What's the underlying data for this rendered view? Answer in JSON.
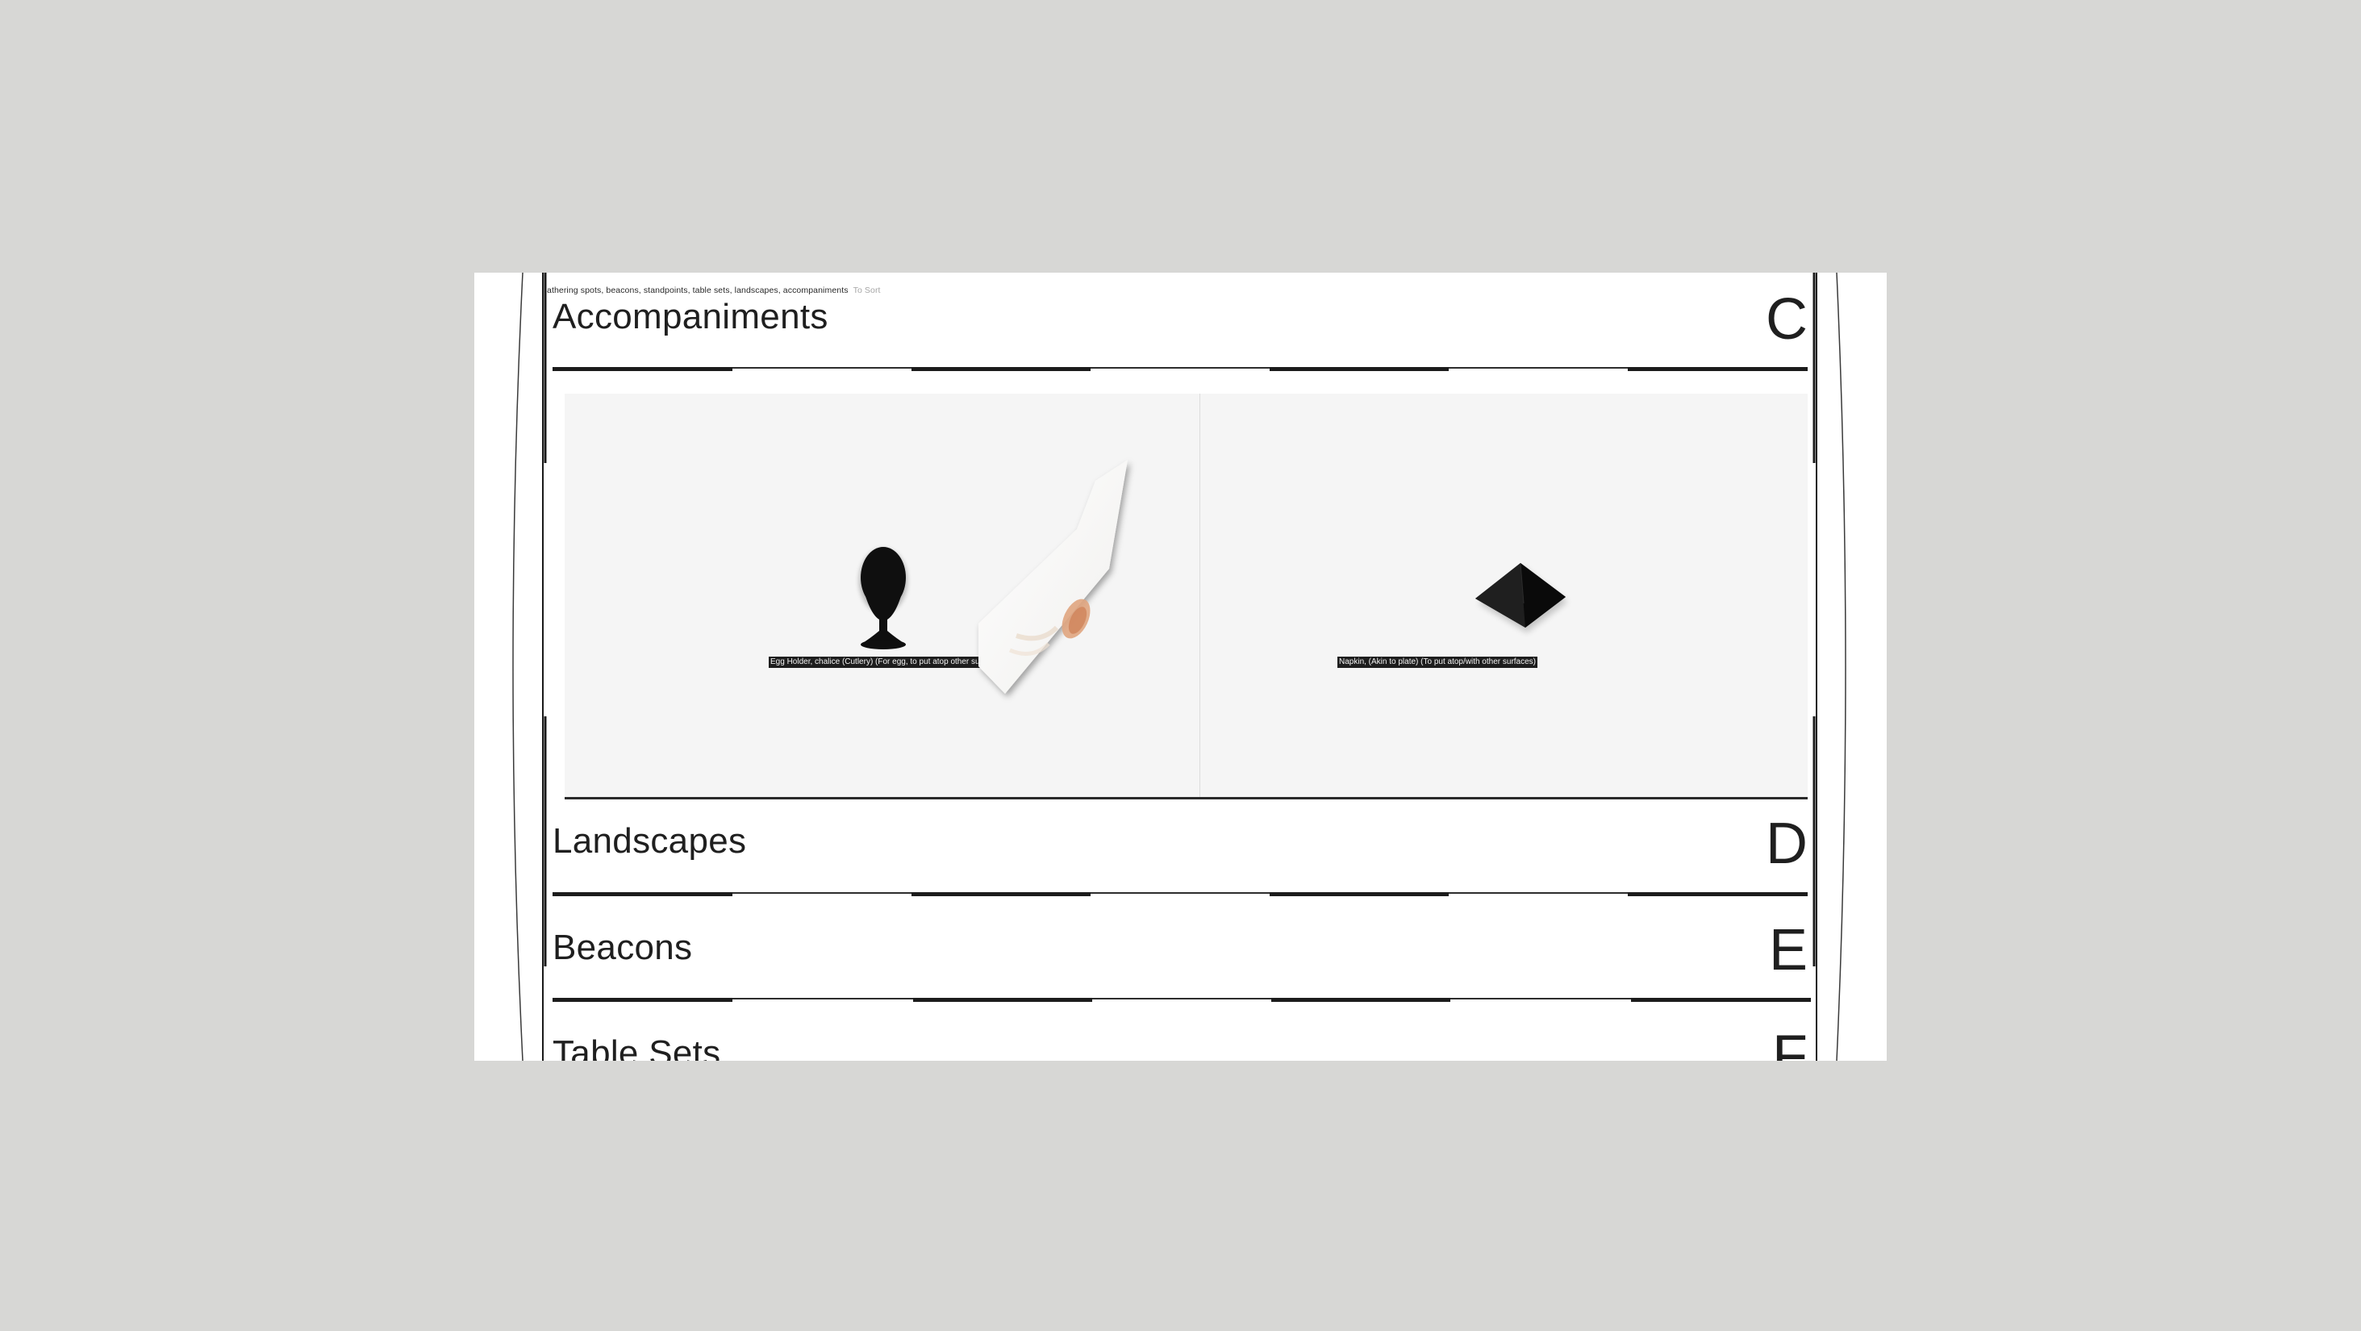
{
  "topbar": {
    "breadcrumb": "athering spots, beacons, standpoints, table sets, landscapes, accompaniments",
    "sort_label": "To Sort"
  },
  "sections": [
    {
      "title": "Accompaniments",
      "letter": "C"
    },
    {
      "title": "Landscapes",
      "letter": "D"
    },
    {
      "title": "Beacons",
      "letter": "E"
    },
    {
      "title": "Table Sets",
      "letter": "F"
    }
  ],
  "gallery": {
    "items": [
      {
        "caption": "Egg Holder, chalice (Cutlery) (For egg, to put atop other surfaces)",
        "icon": "egg-cup-icon"
      },
      {
        "caption": "Napkin, (Akin to plate) (To put atop/with other surfaces)",
        "icon": "napkin-icon"
      }
    ]
  },
  "colors": {
    "backdrop": "#d7d7d5",
    "page": "#ffffff",
    "ink": "#1f1f1f",
    "gallery_bg": "#f5f5f5"
  }
}
